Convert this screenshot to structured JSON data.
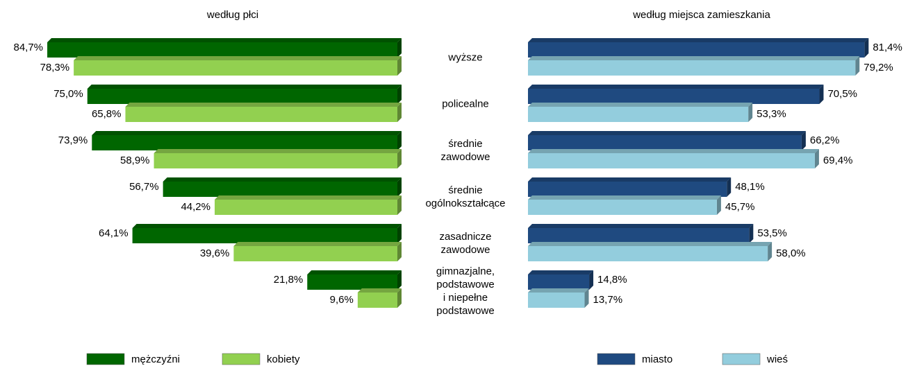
{
  "chart_data": [
    {
      "type": "bar",
      "title": "według płci",
      "categories": [
        "wyższe",
        "policealne",
        "średnie\nzawodowe",
        "średnie\nogólnokształcące",
        "zasadnicze\nzawodowe",
        "gimnazjalne,\npodstawowe\ni niepełne\npodstawowe"
      ],
      "series": [
        {
          "name": "mężczyźni",
          "color": "#006600",
          "values": [
            84.7,
            75.0,
            73.9,
            56.7,
            64.1,
            21.8
          ],
          "value_labels": [
            "84,7%",
            "75,0%",
            "73,9%",
            "56,7%",
            "64,1%",
            "21,8%"
          ]
        },
        {
          "name": "kobiety",
          "color": "#92d050",
          "values": [
            78.3,
            65.8,
            58.9,
            44.2,
            39.6,
            9.6
          ],
          "value_labels": [
            "78,3%",
            "65,8%",
            "58,9%",
            "44,2%",
            "39,6%",
            "9,6%"
          ]
        }
      ]
    },
    {
      "type": "bar",
      "title": "według miejsca zamieszkania",
      "series": [
        {
          "name": "miasto",
          "color": "#1f4a80",
          "values": [
            81.4,
            70.5,
            66.2,
            48.1,
            53.5,
            14.8
          ],
          "value_labels": [
            "81,4%",
            "70,5%",
            "66,2%",
            "48,1%",
            "53,5%",
            "14,8%"
          ]
        },
        {
          "name": "wieś",
          "color": "#93cddd",
          "values": [
            79.2,
            53.3,
            69.4,
            45.7,
            58.0,
            13.7
          ],
          "value_labels": [
            "79,2%",
            "53,3%",
            "69,4%",
            "45,7%",
            "58,0%",
            "13,7%"
          ]
        }
      ]
    }
  ]
}
